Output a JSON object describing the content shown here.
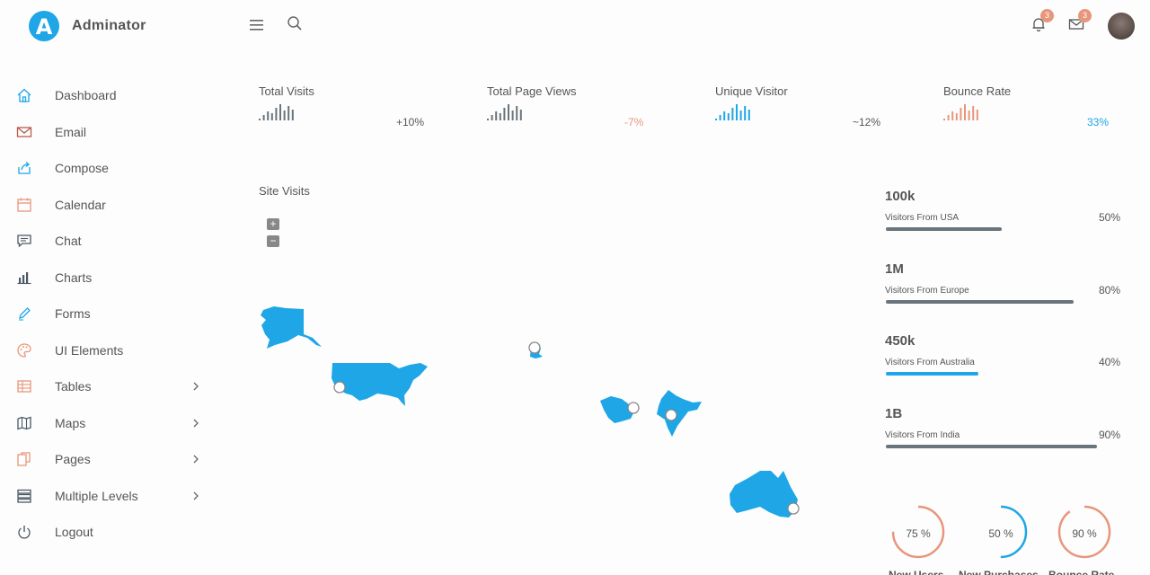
{
  "app": {
    "logo_letter": "A",
    "brand": "Adminator"
  },
  "header": {
    "menu_icon": "hamburger-icon",
    "search_icon": "search-icon",
    "notifications": {
      "icon": "bell-icon",
      "count": "3"
    },
    "messages": {
      "icon": "mail-icon",
      "count": "3"
    }
  },
  "sidebar": {
    "items": [
      {
        "label": "Dashboard",
        "icon": "home-icon",
        "color": "#1ea6e6"
      },
      {
        "label": "Email",
        "icon": "mail-icon",
        "color": "#b85b4a"
      },
      {
        "label": "Compose",
        "icon": "share-icon",
        "color": "#1ea6e6"
      },
      {
        "label": "Calendar",
        "icon": "calendar-icon",
        "color": "#e8967b"
      },
      {
        "label": "Chat",
        "icon": "chat-icon",
        "color": "#4a5a66"
      },
      {
        "label": "Charts",
        "icon": "bar-chart-icon",
        "color": "#4a5a66"
      },
      {
        "label": "Forms",
        "icon": "pencil-icon",
        "color": "#1ea6e6"
      },
      {
        "label": "UI Elements",
        "icon": "palette-icon",
        "color": "#e8967b"
      },
      {
        "label": "Tables",
        "icon": "table-icon",
        "color": "#e8967b"
      },
      {
        "label": "Maps",
        "icon": "map-icon",
        "color": "#4a5a66"
      },
      {
        "label": "Pages",
        "icon": "files-icon",
        "color": "#e8967b"
      },
      {
        "label": "Multiple Levels",
        "icon": "layers-icon",
        "color": "#4a5a66"
      },
      {
        "label": "Logout",
        "icon": "power-icon",
        "color": "#4a5a66"
      }
    ]
  },
  "stats": [
    {
      "title": "Total Visits",
      "change": "+10%",
      "color": "#6a747b",
      "change_color": "#555555"
    },
    {
      "title": "Total Page Views",
      "change": "-7%",
      "color": "#6a747b",
      "change_color": "#e8967b"
    },
    {
      "title": "Unique Visitor",
      "change": "~12%",
      "color": "#1ea6e6",
      "change_color": "#555555"
    },
    {
      "title": "Bounce Rate",
      "change": "33%",
      "color": "#e8967b",
      "change_color": "#1ea6e6"
    }
  ],
  "map": {
    "title": "Site Visits",
    "zoom_in": "+",
    "zoom_out": "−",
    "region_color": "#1ea6e6"
  },
  "locations": [
    {
      "value": "100k",
      "label": "Visitors From USA",
      "pct": "50%",
      "fill": 0.55,
      "color": "#6a747b"
    },
    {
      "value": "1M",
      "label": "Visitors From Europe",
      "pct": "80%",
      "fill": 0.89,
      "color": "#6a747b"
    },
    {
      "value": "450k",
      "label": "Visitors From Australia",
      "pct": "40%",
      "fill": 0.44,
      "color": "#1ea6e6"
    },
    {
      "value": "1B",
      "label": "Visitors From India",
      "pct": "90%",
      "fill": 1.0,
      "color": "#6a747b"
    }
  ],
  "donuts": [
    {
      "value": "75 %",
      "label": "New Users",
      "fraction": 0.75,
      "color": "#e8967b"
    },
    {
      "value": "50 %",
      "label": "New Purchases",
      "fraction": 0.5,
      "color": "#1ea6e6"
    },
    {
      "value": "90 %",
      "label": "Bounce Rate",
      "fraction": 0.9,
      "color": "#e8967b"
    }
  ]
}
